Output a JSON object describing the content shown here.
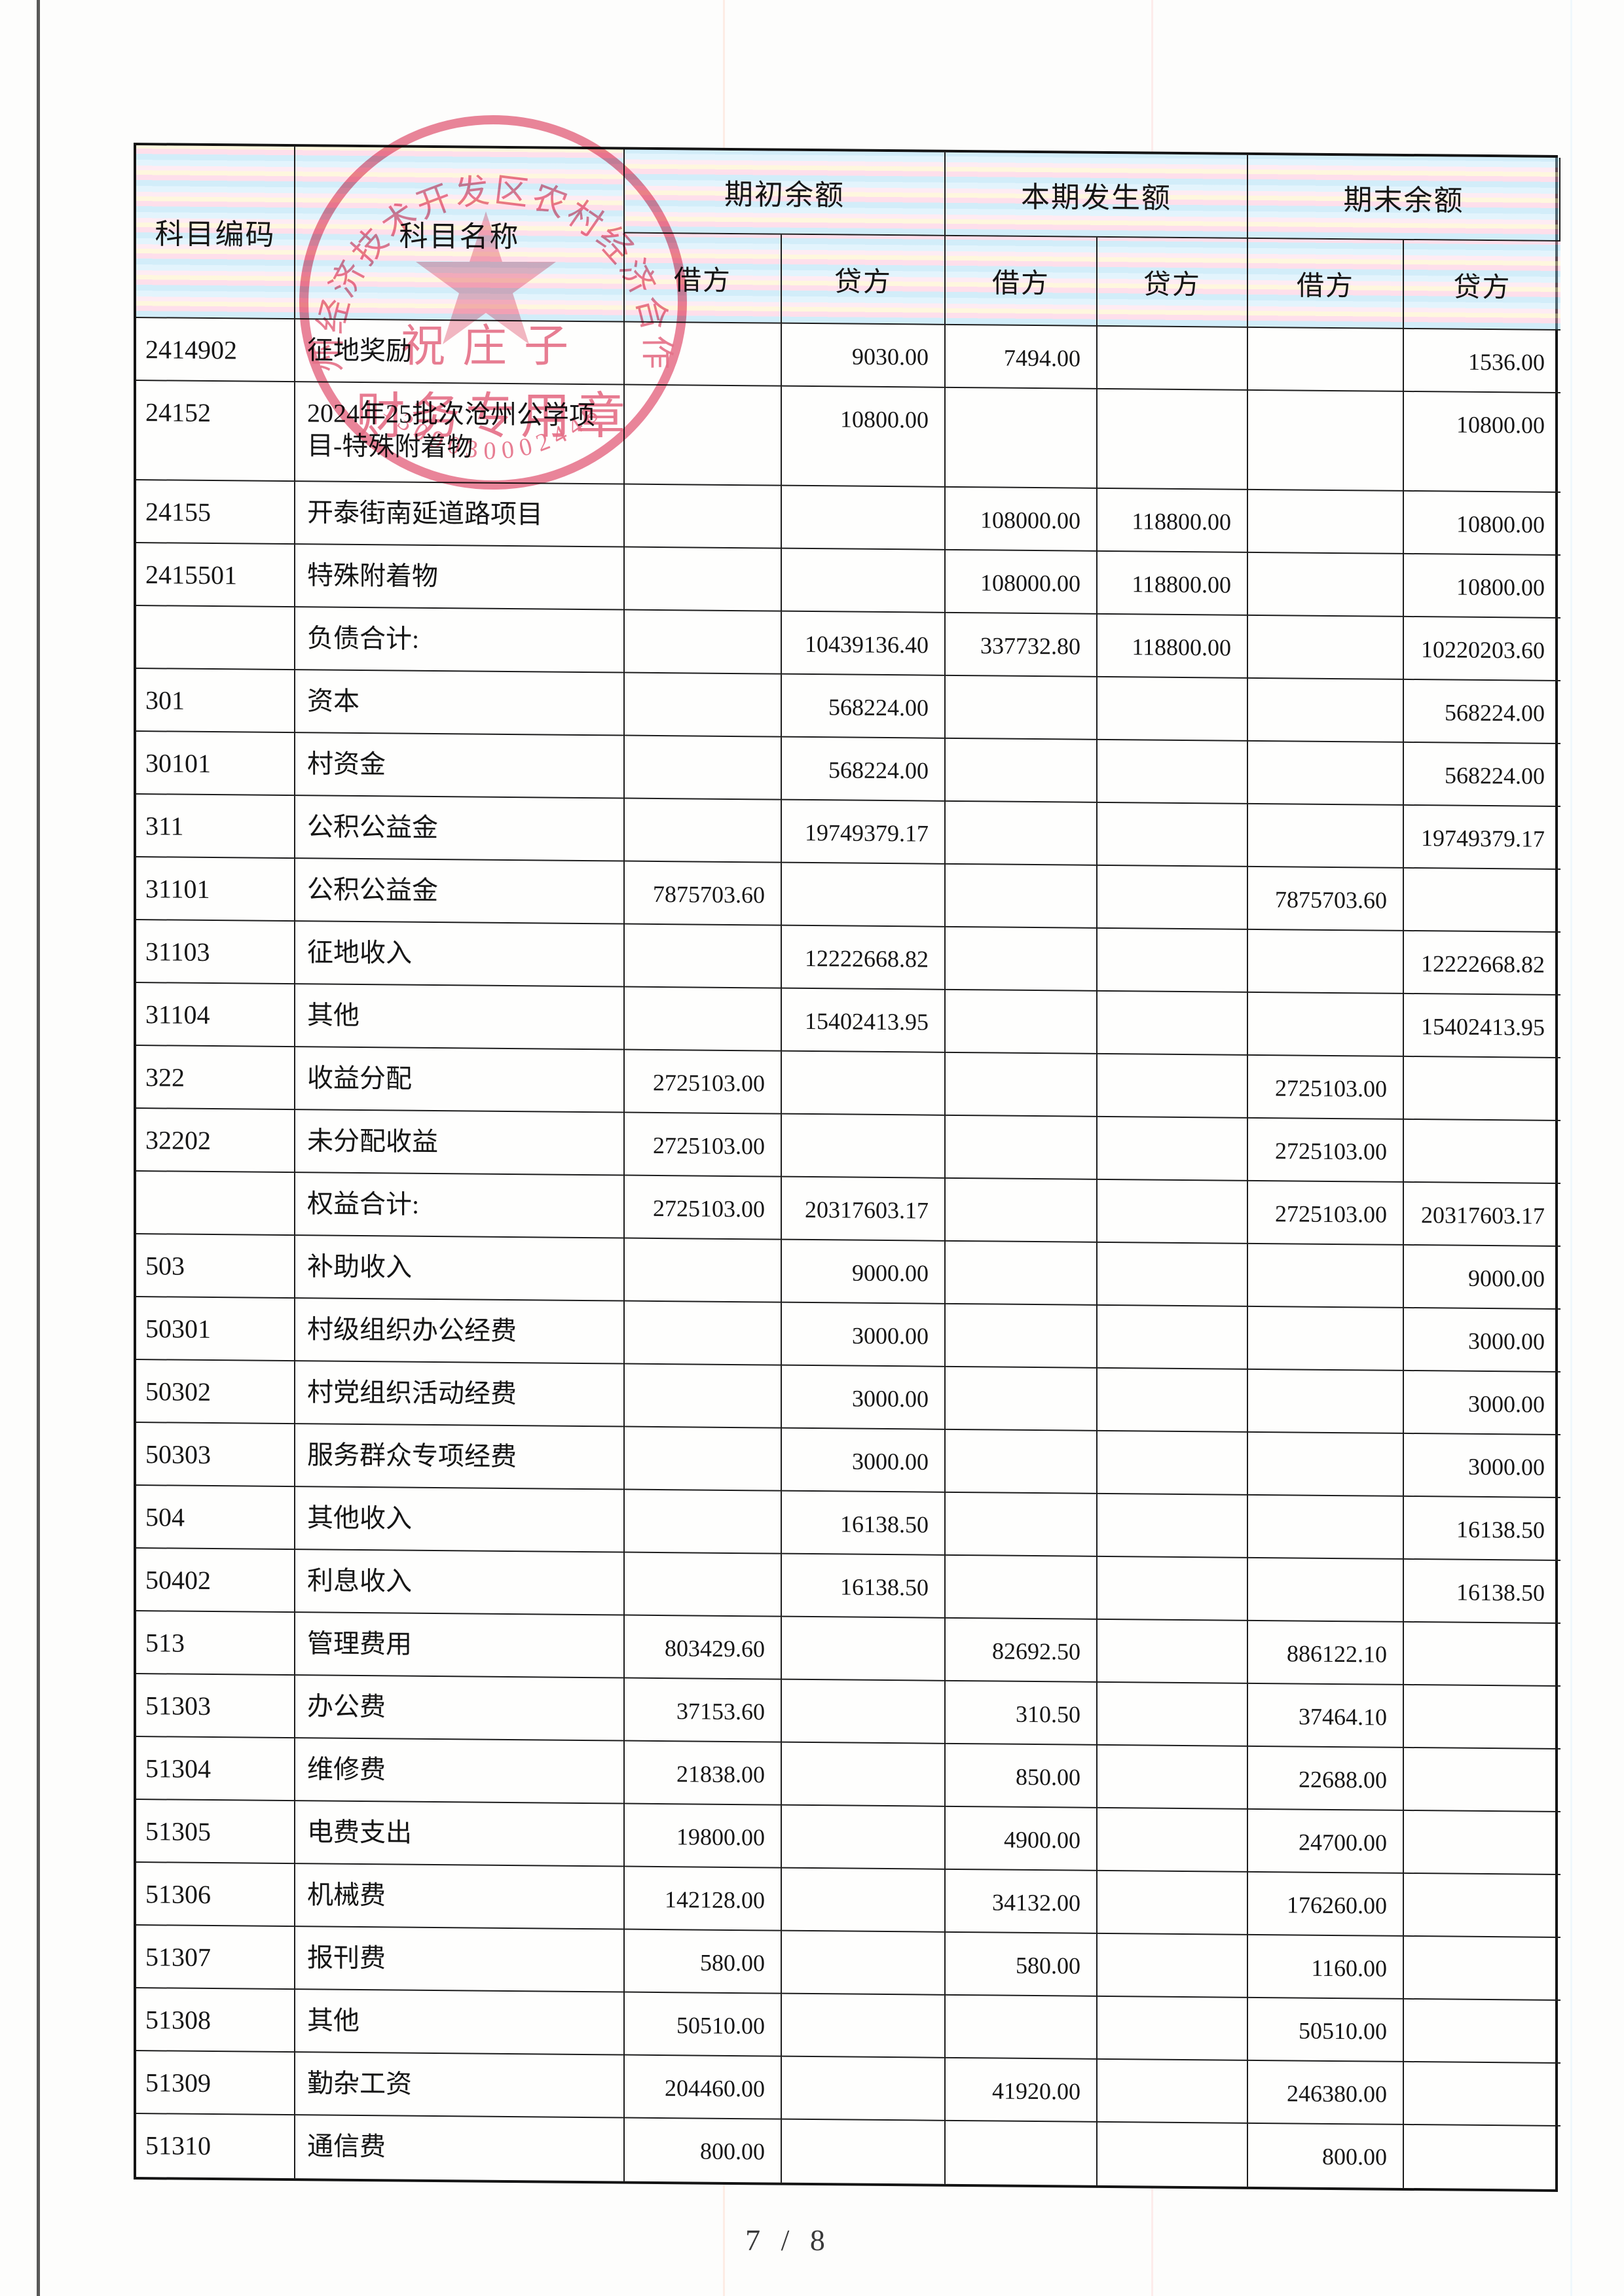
{
  "page": {
    "footer_page_indicator": "7 / 8"
  },
  "table": {
    "header": {
      "col_code": "科目编码",
      "col_name": "科目名称",
      "groups": [
        "期初余额",
        "本期发生额",
        "期末余额"
      ],
      "debit": "借方",
      "credit": "贷方"
    },
    "rows": [
      {
        "code": "2414902",
        "name": "征地奖励",
        "ob_dr": "",
        "ob_cr": "9030.00",
        "cp_dr": "7494.00",
        "cp_cr": "",
        "eb_dr": "",
        "eb_cr": "1536.00",
        "tall": false
      },
      {
        "code": "24152",
        "name": "2024年25批次沧州公学项目-特殊附着物",
        "ob_dr": "",
        "ob_cr": "10800.00",
        "cp_dr": "",
        "cp_cr": "",
        "eb_dr": "",
        "eb_cr": "10800.00",
        "tall": true
      },
      {
        "code": "24155",
        "name": "开泰街南延道路项目",
        "ob_dr": "",
        "ob_cr": "",
        "cp_dr": "108000.00",
        "cp_cr": "118800.00",
        "eb_dr": "",
        "eb_cr": "10800.00",
        "tall": false
      },
      {
        "code": "2415501",
        "name": "特殊附着物",
        "ob_dr": "",
        "ob_cr": "",
        "cp_dr": "108000.00",
        "cp_cr": "118800.00",
        "eb_dr": "",
        "eb_cr": "10800.00",
        "tall": false
      },
      {
        "code": "",
        "name": "负债合计:",
        "ob_dr": "",
        "ob_cr": "10439136.40",
        "cp_dr": "337732.80",
        "cp_cr": "118800.00",
        "eb_dr": "",
        "eb_cr": "10220203.60",
        "tall": false
      },
      {
        "code": "301",
        "name": "资本",
        "ob_dr": "",
        "ob_cr": "568224.00",
        "cp_dr": "",
        "cp_cr": "",
        "eb_dr": "",
        "eb_cr": "568224.00",
        "tall": false
      },
      {
        "code": "30101",
        "name": "村资金",
        "ob_dr": "",
        "ob_cr": "568224.00",
        "cp_dr": "",
        "cp_cr": "",
        "eb_dr": "",
        "eb_cr": "568224.00",
        "tall": false
      },
      {
        "code": "311",
        "name": "公积公益金",
        "ob_dr": "",
        "ob_cr": "19749379.17",
        "cp_dr": "",
        "cp_cr": "",
        "eb_dr": "",
        "eb_cr": "19749379.17",
        "tall": false
      },
      {
        "code": "31101",
        "name": "公积公益金",
        "ob_dr": "7875703.60",
        "ob_cr": "",
        "cp_dr": "",
        "cp_cr": "",
        "eb_dr": "7875703.60",
        "eb_cr": "",
        "tall": false
      },
      {
        "code": "31103",
        "name": "征地收入",
        "ob_dr": "",
        "ob_cr": "12222668.82",
        "cp_dr": "",
        "cp_cr": "",
        "eb_dr": "",
        "eb_cr": "12222668.82",
        "tall": false
      },
      {
        "code": "31104",
        "name": "其他",
        "ob_dr": "",
        "ob_cr": "15402413.95",
        "cp_dr": "",
        "cp_cr": "",
        "eb_dr": "",
        "eb_cr": "15402413.95",
        "tall": false
      },
      {
        "code": "322",
        "name": "收益分配",
        "ob_dr": "2725103.00",
        "ob_cr": "",
        "cp_dr": "",
        "cp_cr": "",
        "eb_dr": "2725103.00",
        "eb_cr": "",
        "tall": false
      },
      {
        "code": "32202",
        "name": "未分配收益",
        "ob_dr": "2725103.00",
        "ob_cr": "",
        "cp_dr": "",
        "cp_cr": "",
        "eb_dr": "2725103.00",
        "eb_cr": "",
        "tall": false
      },
      {
        "code": "",
        "name": "权益合计:",
        "ob_dr": "2725103.00",
        "ob_cr": "20317603.17",
        "cp_dr": "",
        "cp_cr": "",
        "eb_dr": "2725103.00",
        "eb_cr": "20317603.17",
        "tall": false
      },
      {
        "code": "503",
        "name": "补助收入",
        "ob_dr": "",
        "ob_cr": "9000.00",
        "cp_dr": "",
        "cp_cr": "",
        "eb_dr": "",
        "eb_cr": "9000.00",
        "tall": false
      },
      {
        "code": "50301",
        "name": "村级组织办公经费",
        "ob_dr": "",
        "ob_cr": "3000.00",
        "cp_dr": "",
        "cp_cr": "",
        "eb_dr": "",
        "eb_cr": "3000.00",
        "tall": false
      },
      {
        "code": "50302",
        "name": "村党组织活动经费",
        "ob_dr": "",
        "ob_cr": "3000.00",
        "cp_dr": "",
        "cp_cr": "",
        "eb_dr": "",
        "eb_cr": "3000.00",
        "tall": false
      },
      {
        "code": "50303",
        "name": "服务群众专项经费",
        "ob_dr": "",
        "ob_cr": "3000.00",
        "cp_dr": "",
        "cp_cr": "",
        "eb_dr": "",
        "eb_cr": "3000.00",
        "tall": false
      },
      {
        "code": "504",
        "name": "其他收入",
        "ob_dr": "",
        "ob_cr": "16138.50",
        "cp_dr": "",
        "cp_cr": "",
        "eb_dr": "",
        "eb_cr": "16138.50",
        "tall": false
      },
      {
        "code": "50402",
        "name": "利息收入",
        "ob_dr": "",
        "ob_cr": "16138.50",
        "cp_dr": "",
        "cp_cr": "",
        "eb_dr": "",
        "eb_cr": "16138.50",
        "tall": false
      },
      {
        "code": "513",
        "name": "管理费用",
        "ob_dr": "803429.60",
        "ob_cr": "",
        "cp_dr": "82692.50",
        "cp_cr": "",
        "eb_dr": "886122.10",
        "eb_cr": "",
        "tall": false
      },
      {
        "code": "51303",
        "name": "办公费",
        "ob_dr": "37153.60",
        "ob_cr": "",
        "cp_dr": "310.50",
        "cp_cr": "",
        "eb_dr": "37464.10",
        "eb_cr": "",
        "tall": false
      },
      {
        "code": "51304",
        "name": "维修费",
        "ob_dr": "21838.00",
        "ob_cr": "",
        "cp_dr": "850.00",
        "cp_cr": "",
        "eb_dr": "22688.00",
        "eb_cr": "",
        "tall": false
      },
      {
        "code": "51305",
        "name": "电费支出",
        "ob_dr": "19800.00",
        "ob_cr": "",
        "cp_dr": "4900.00",
        "cp_cr": "",
        "eb_dr": "24700.00",
        "eb_cr": "",
        "tall": false
      },
      {
        "code": "51306",
        "name": "机械费",
        "ob_dr": "142128.00",
        "ob_cr": "",
        "cp_dr": "34132.00",
        "cp_cr": "",
        "eb_dr": "176260.00",
        "eb_cr": "",
        "tall": false
      },
      {
        "code": "51307",
        "name": "报刊费",
        "ob_dr": "580.00",
        "ob_cr": "",
        "cp_dr": "580.00",
        "cp_cr": "",
        "eb_dr": "1160.00",
        "eb_cr": "",
        "tall": false
      },
      {
        "code": "51308",
        "name": "其他",
        "ob_dr": "50510.00",
        "ob_cr": "",
        "cp_dr": "",
        "cp_cr": "",
        "eb_dr": "50510.00",
        "eb_cr": "",
        "tall": false
      },
      {
        "code": "51309",
        "name": "勤杂工资",
        "ob_dr": "204460.00",
        "ob_cr": "",
        "cp_dr": "41920.00",
        "cp_cr": "",
        "eb_dr": "246380.00",
        "eb_cr": "",
        "tall": false
      },
      {
        "code": "51310",
        "name": "通信费",
        "ob_dr": "800.00",
        "ob_cr": "",
        "cp_dr": "",
        "cp_cr": "",
        "eb_dr": "800.00",
        "eb_cr": "",
        "tall": false
      }
    ]
  },
  "stamp": {
    "arc_text": "沧州经济技术开发区农村经济合作社",
    "center_name": "祝庄子",
    "bottom_title": "财务专用章",
    "serial": "1309030002448",
    "color": "#e4637e"
  }
}
